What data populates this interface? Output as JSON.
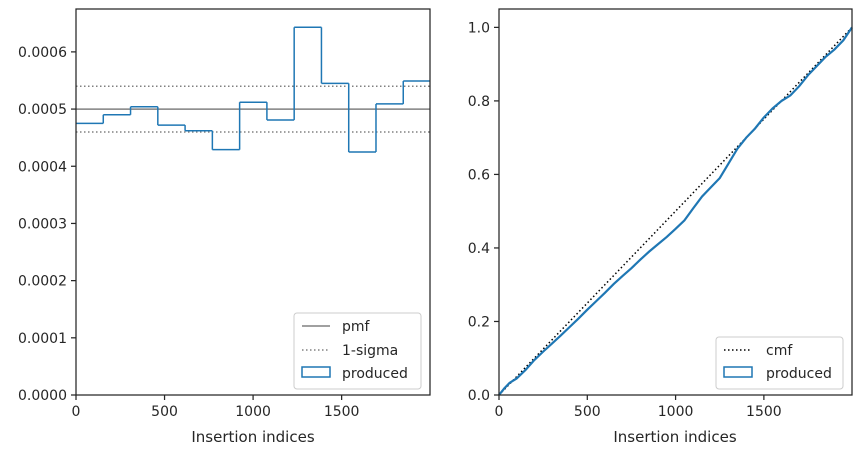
{
  "chart_data": [
    {
      "type": "histogram",
      "xlabel": "Insertion indices",
      "ylabel": "",
      "xlim": [
        0,
        1999
      ],
      "ylim": [
        0,
        0.000675
      ],
      "xticks": [
        0,
        500,
        1000,
        1500
      ],
      "xtick_labels": [
        "0",
        "500",
        "1000",
        "1500"
      ],
      "yticks": [
        0,
        0.0001,
        0.0002,
        0.0003,
        0.0004,
        0.0005,
        0.0006
      ],
      "ytick_labels": [
        "0.0000",
        "0.0001",
        "0.0002",
        "0.0003",
        "0.0004",
        "0.0005",
        "0.0006"
      ],
      "bin_edges": [
        0,
        154,
        308,
        462,
        616,
        770,
        924,
        1078,
        1232,
        1386,
        1540,
        1694,
        1848,
        1999
      ],
      "series": [
        {
          "name": "produced",
          "style": "step",
          "color": "#1f77b4",
          "values": [
            0.000475,
            0.00049,
            0.000504,
            0.000472,
            0.000462,
            0.000429,
            0.000512,
            0.000481,
            0.000643,
            0.000545,
            0.000425,
            0.000509,
            0.000549
          ]
        }
      ],
      "reference_lines": [
        {
          "name": "pmf",
          "value": 0.0005,
          "color": "#808080",
          "style": "solid"
        },
        {
          "name": "1-sigma",
          "value": 0.00054,
          "color": "#808080",
          "style": "dotted"
        },
        {
          "name": "1-sigma-lower",
          "value": 0.00046,
          "color": "#808080",
          "style": "dotted"
        }
      ],
      "legend": {
        "position": "bottom-right",
        "entries": [
          "pmf",
          "1-sigma",
          "produced"
        ]
      }
    },
    {
      "type": "line",
      "xlabel": "Insertion indices",
      "ylabel": "",
      "xlim": [
        0,
        1999
      ],
      "ylim": [
        0,
        1.05
      ],
      "xticks": [
        0,
        500,
        1000,
        1500
      ],
      "xtick_labels": [
        "0",
        "500",
        "1000",
        "1500"
      ],
      "yticks": [
        0,
        0.2,
        0.4,
        0.6,
        0.8,
        1.0
      ],
      "ytick_labels": [
        "0.0",
        "0.2",
        "0.4",
        "0.6",
        "0.8",
        "1.0"
      ],
      "series": [
        {
          "name": "cmf",
          "color": "#000000",
          "style": "dotted",
          "x": [
            0,
            1999
          ],
          "y": [
            0,
            1.0
          ]
        },
        {
          "name": "produced",
          "color": "#1f77b4",
          "style": "solid",
          "x": [
            0,
            30,
            60,
            100,
            150,
            200,
            250,
            300,
            350,
            400,
            450,
            500,
            550,
            600,
            650,
            700,
            750,
            800,
            850,
            900,
            950,
            1000,
            1050,
            1100,
            1150,
            1200,
            1250,
            1300,
            1350,
            1400,
            1450,
            1500,
            1550,
            1600,
            1650,
            1700,
            1750,
            1800,
            1850,
            1900,
            1950,
            1999
          ],
          "y": [
            0,
            0.018,
            0.033,
            0.045,
            0.068,
            0.095,
            0.118,
            0.14,
            0.162,
            0.185,
            0.208,
            0.232,
            0.255,
            0.278,
            0.302,
            0.324,
            0.345,
            0.368,
            0.39,
            0.41,
            0.43,
            0.452,
            0.475,
            0.508,
            0.54,
            0.565,
            0.59,
            0.63,
            0.67,
            0.7,
            0.725,
            0.755,
            0.78,
            0.8,
            0.815,
            0.84,
            0.87,
            0.895,
            0.92,
            0.94,
            0.965,
            1.0
          ]
        }
      ],
      "legend": {
        "position": "bottom-right",
        "entries": [
          "cmf",
          "produced"
        ]
      }
    }
  ]
}
